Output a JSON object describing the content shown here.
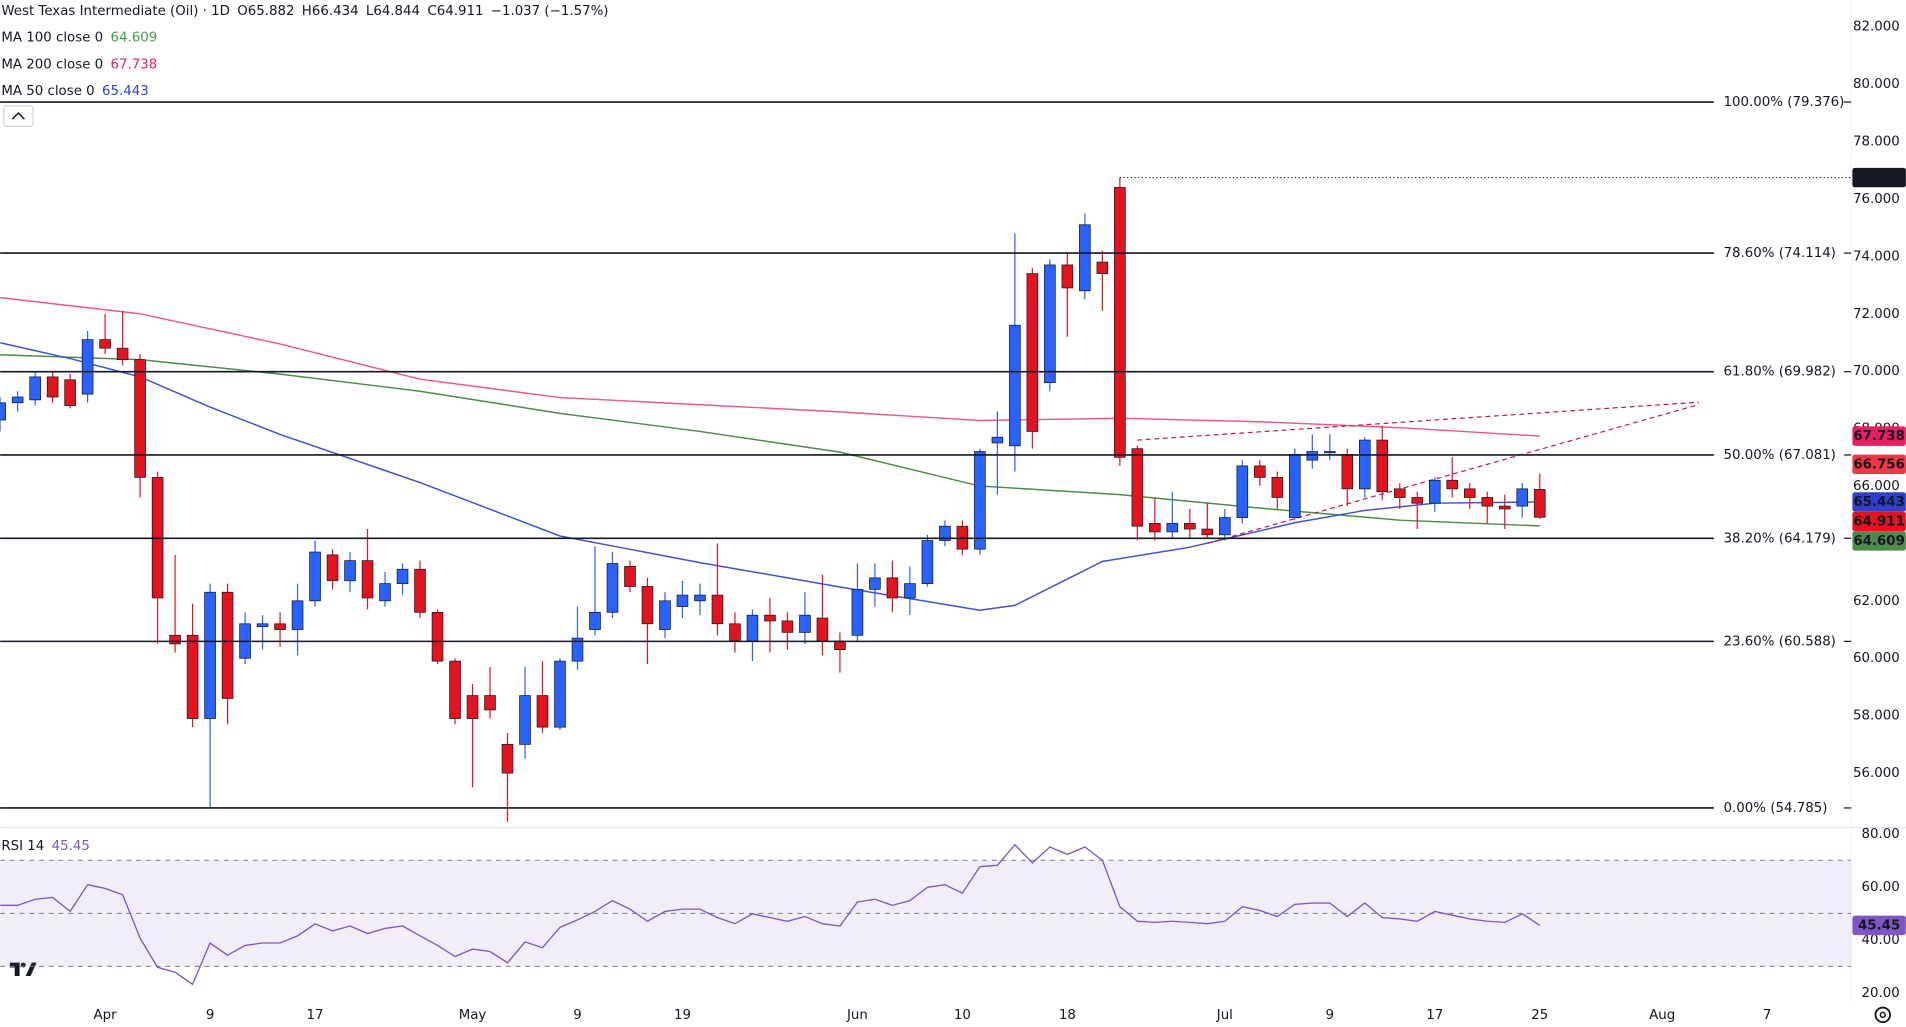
{
  "chart_data": {
    "type": "candlestick",
    "title": "West Texas Intermediate (Oil) · 1D",
    "ohlc_text": [
      "O65.882",
      "H66.434",
      "L64.844",
      "C64.911",
      "−1.037 (−1.57%)"
    ],
    "up_color": "#2962ff",
    "down_color": "#e3141e",
    "high_color": "#131722",
    "x": [
      0,
      1,
      2,
      3,
      4,
      5,
      6,
      7,
      8,
      9,
      10,
      11,
      12,
      13,
      14,
      15,
      16,
      17,
      18,
      19,
      20,
      21,
      22,
      23,
      24,
      25,
      26,
      27,
      28,
      29,
      30,
      31,
      32,
      33,
      34,
      35,
      36,
      37,
      38,
      39,
      40,
      41,
      42,
      43,
      44,
      45,
      46,
      47,
      48,
      49,
      50,
      51,
      52,
      53,
      54,
      55,
      56,
      57,
      58,
      59,
      60,
      61,
      62,
      63,
      64,
      65,
      66,
      67,
      68,
      69,
      70,
      71,
      72,
      73,
      74,
      75,
      76,
      77,
      78,
      79,
      80,
      81,
      82,
      83,
      84,
      85,
      86,
      87,
      88
    ],
    "open": [
      68.3,
      68.9,
      69.0,
      69.8,
      69.7,
      69.2,
      71.1,
      70.8,
      70.4,
      66.3,
      60.8,
      60.8,
      57.9,
      62.3,
      60.0,
      61.1,
      61.2,
      61.0,
      62.0,
      63.6,
      62.7,
      63.4,
      62.0,
      62.6,
      63.1,
      61.6,
      59.9,
      58.7,
      58.7,
      57.0,
      57.0,
      58.7,
      57.6,
      59.9,
      61.0,
      61.6,
      63.2,
      62.5,
      61.0,
      61.8,
      62.0,
      62.2,
      61.2,
      60.6,
      61.5,
      61.3,
      60.9,
      61.4,
      60.6,
      60.8,
      62.4,
      62.8,
      62.1,
      62.6,
      64.1,
      64.6,
      63.8,
      67.5,
      67.4,
      73.4,
      69.6,
      73.7,
      72.8,
      73.8,
      76.4,
      67.3,
      64.7,
      64.4,
      64.7,
      64.5,
      64.3,
      64.9,
      66.7,
      66.3,
      64.9,
      66.9,
      67.2,
      67.1,
      65.9,
      67.6,
      65.9,
      65.6,
      65.4,
      66.2,
      65.9,
      65.6,
      65.3,
      65.3,
      65.882
    ],
    "high": [
      69.1,
      69.3,
      70.0,
      70.0,
      69.9,
      71.4,
      72.0,
      72.1,
      70.6,
      66.5,
      63.6,
      61.9,
      62.6,
      62.6,
      61.6,
      61.5,
      61.6,
      62.6,
      64.1,
      63.8,
      63.7,
      64.5,
      63.0,
      63.3,
      63.4,
      61.7,
      60.0,
      59.1,
      59.7,
      57.4,
      59.7,
      59.9,
      60.0,
      61.8,
      63.9,
      63.7,
      63.4,
      62.8,
      62.3,
      62.7,
      62.6,
      64.0,
      61.6,
      61.7,
      62.1,
      61.6,
      62.3,
      62.9,
      60.9,
      63.3,
      63.3,
      63.4,
      63.2,
      64.3,
      64.8,
      64.8,
      67.3,
      68.6,
      74.8,
      73.6,
      73.9,
      74.1,
      75.5,
      74.2,
      76.744,
      67.4,
      65.6,
      65.8,
      65.2,
      65.4,
      65.2,
      66.9,
      66.9,
      66.5,
      67.3,
      67.8,
      67.8,
      67.3,
      67.7,
      68.1,
      66.1,
      65.8,
      66.3,
      67.0,
      66.1,
      65.8,
      65.7,
      66.1,
      66.434
    ],
    "low": [
      67.9,
      68.6,
      68.8,
      68.9,
      68.7,
      68.9,
      70.6,
      70.2,
      65.6,
      60.5,
      60.2,
      57.6,
      54.8,
      57.7,
      59.8,
      60.3,
      60.4,
      60.1,
      61.8,
      62.4,
      62.3,
      61.7,
      61.8,
      62.2,
      61.4,
      59.8,
      57.7,
      55.5,
      57.9,
      54.3,
      56.5,
      57.4,
      57.5,
      59.6,
      60.8,
      61.4,
      62.3,
      59.8,
      60.7,
      61.4,
      61.5,
      60.8,
      60.2,
      59.9,
      60.2,
      60.3,
      60.5,
      60.1,
      59.5,
      60.6,
      61.8,
      61.6,
      61.5,
      62.5,
      63.9,
      63.6,
      63.6,
      65.7,
      66.5,
      67.3,
      69.3,
      71.2,
      72.5,
      72.1,
      66.7,
      64.1,
      64.1,
      64.2,
      64.2,
      64.2,
      64.1,
      64.7,
      66.0,
      65.2,
      64.8,
      66.6,
      66.9,
      65.3,
      65.6,
      65.5,
      65.2,
      64.5,
      65.1,
      65.6,
      65.2,
      64.7,
      64.5,
      64.9,
      64.844
    ],
    "close": [
      68.9,
      69.1,
      69.8,
      69.1,
      68.8,
      71.1,
      70.8,
      70.4,
      66.3,
      62.1,
      60.5,
      57.9,
      62.3,
      58.6,
      61.2,
      61.2,
      61.0,
      62.0,
      63.7,
      62.7,
      63.4,
      62.1,
      62.6,
      63.1,
      61.6,
      59.9,
      57.9,
      57.9,
      58.2,
      56.0,
      58.7,
      57.6,
      59.9,
      60.7,
      61.6,
      63.3,
      62.5,
      61.2,
      62.0,
      62.2,
      62.2,
      61.2,
      60.6,
      61.5,
      61.3,
      60.9,
      61.5,
      60.6,
      60.3,
      62.4,
      62.8,
      62.1,
      62.6,
      64.1,
      64.6,
      63.8,
      67.2,
      67.7,
      71.6,
      67.9,
      73.7,
      72.9,
      75.1,
      73.4,
      67.0,
      64.6,
      64.4,
      64.7,
      64.5,
      64.3,
      64.9,
      66.7,
      66.3,
      65.6,
      67.1,
      67.2,
      67.2,
      65.9,
      67.6,
      65.8,
      65.6,
      65.4,
      66.2,
      65.9,
      65.6,
      65.3,
      65.2,
      65.9,
      64.911
    ],
    "xlim": [
      0,
      105.8
    ],
    "xticks": [
      {
        "value": 6,
        "label": "Apr"
      },
      {
        "value": 12,
        "label": "9"
      },
      {
        "value": 18,
        "label": "17"
      },
      {
        "value": 27,
        "label": "May"
      },
      {
        "value": 33,
        "label": "9"
      },
      {
        "value": 39,
        "label": "19"
      },
      {
        "value": 49,
        "label": "Jun"
      },
      {
        "value": 55,
        "label": "10"
      },
      {
        "value": 61,
        "label": "18"
      },
      {
        "value": 70,
        "label": "Jul"
      },
      {
        "value": 76,
        "label": "9"
      },
      {
        "value": 82,
        "label": "17"
      },
      {
        "value": 88,
        "label": "25"
      },
      {
        "value": 95,
        "label": "Aug"
      },
      {
        "value": 101,
        "label": "7"
      }
    ],
    "ylim": [
      54.14,
      82.93
    ],
    "yticks": [
      {
        "value": 56,
        "label": "56.000"
      },
      {
        "value": 58,
        "label": "58.000"
      },
      {
        "value": 60,
        "label": "60.000"
      },
      {
        "value": 62,
        "label": "62.000"
      },
      {
        "value": 64,
        "label": "64.000"
      },
      {
        "value": 66,
        "label": "66.000"
      },
      {
        "value": 68,
        "label": "68.000"
      },
      {
        "value": 70,
        "label": "70.000"
      },
      {
        "value": 72,
        "label": "72.000"
      },
      {
        "value": 74,
        "label": "74.000"
      },
      {
        "value": 76,
        "label": "76.000"
      },
      {
        "value": 78,
        "label": "78.000"
      },
      {
        "value": 80,
        "label": "80.000"
      },
      {
        "value": 82,
        "label": "82.000"
      }
    ],
    "moving_averages": [
      {
        "name": "MA 100 close 0",
        "color": "#43a047",
        "line_color": "#4f8a4c",
        "x": [
          0,
          8,
          16,
          24,
          32,
          40,
          48,
          56,
          64,
          72,
          80,
          88
        ],
        "values": [
          70.57,
          70.4,
          69.9,
          69.3,
          68.53,
          67.9,
          67.18,
          66.0,
          65.7,
          65.23,
          64.81,
          64.609
        ]
      },
      {
        "name": "MA 200 close 0",
        "color": "#e91e63",
        "line_color": "#f0568a",
        "x": [
          0,
          8,
          16,
          24,
          32,
          40,
          48,
          56,
          64,
          72,
          80,
          88
        ],
        "values": [
          72.56,
          72.0,
          70.95,
          69.72,
          69.08,
          68.83,
          68.58,
          68.28,
          68.36,
          68.24,
          68.03,
          67.738
        ]
      },
      {
        "name": "MA 50 close 0",
        "color": "#2f3fd0",
        "line_color": "#3f4fd8",
        "x": [
          0,
          4,
          8,
          12,
          16,
          24,
          32,
          40,
          48,
          56,
          58,
          63,
          68,
          74,
          78,
          82,
          88
        ],
        "values": [
          70.99,
          70.44,
          69.8,
          68.75,
          67.8,
          66.12,
          64.26,
          63.33,
          62.48,
          61.67,
          61.84,
          63.37,
          63.87,
          64.72,
          65.15,
          65.4,
          65.443
        ]
      }
    ],
    "fib_color": "#131722",
    "fib_levels": [
      {
        "value": 79.376,
        "label": "100.00% (79.376)"
      },
      {
        "value": 74.114,
        "label": "78.60% (74.114)"
      },
      {
        "value": 69.982,
        "label": "61.80% (69.982)"
      },
      {
        "value": 67.081,
        "label": "50.00% (67.081)"
      },
      {
        "value": 64.179,
        "label": "38.20% (64.179)"
      },
      {
        "value": 60.588,
        "label": "23.60% (60.588)"
      },
      {
        "value": 54.785,
        "label": "0.00% (54.785)"
      }
    ],
    "trendline_color": "#c2185b",
    "trendlines": [
      {
        "x": [
          65,
          97.1
        ],
        "values": [
          67.6,
          68.92
        ]
      },
      {
        "x": [
          69,
          97.1
        ],
        "values": [
          64.0,
          68.84
        ]
      }
    ],
    "price_tags": [
      {
        "value": 66.756,
        "color": "#f23645"
      }
    ],
    "rsi": {
      "name": "RSI 14",
      "color": "#7e57c2",
      "values": [
        53,
        53,
        55.3,
        56,
        50.7,
        60.8,
        59.4,
        57,
        40.6,
        29.6,
        27.8,
        23.2,
        38.8,
        34.2,
        37.9,
        38.8,
        38.8,
        41.5,
        46,
        43.4,
        45.2,
        42.4,
        44.3,
        45.2,
        41.5,
        37.9,
        33.7,
        36.5,
        35.6,
        31.4,
        39.2,
        37,
        44.7,
        47.5,
        50.7,
        54.8,
        51.6,
        47,
        50.7,
        51.6,
        51.6,
        48.4,
        46.1,
        49.8,
        48.4,
        47,
        48.8,
        46.1,
        45.2,
        54.3,
        55.3,
        53,
        54.8,
        59.8,
        60.8,
        57.6,
        67.6,
        68.1,
        75.9,
        69,
        75,
        72.2,
        75,
        70,
        52.5,
        47,
        46.6,
        47,
        46.6,
        46.1,
        47,
        52.5,
        51.1,
        48.8,
        53.4,
        53.9,
        53.9,
        48.8,
        53.9,
        48.4,
        47.9,
        47,
        50.7,
        49.3,
        47.9,
        47,
        46.6,
        49.8,
        45.45
      ],
      "ylim": [
        16.3,
        82.3
      ],
      "yticks": [
        {
          "value": 20,
          "label": "20.00"
        },
        {
          "value": 40,
          "label": "40.00"
        },
        {
          "value": 60,
          "label": "60.00"
        },
        {
          "value": 80,
          "label": "80.00"
        }
      ],
      "levels": [
        70,
        50,
        30
      ]
    }
  }
}
